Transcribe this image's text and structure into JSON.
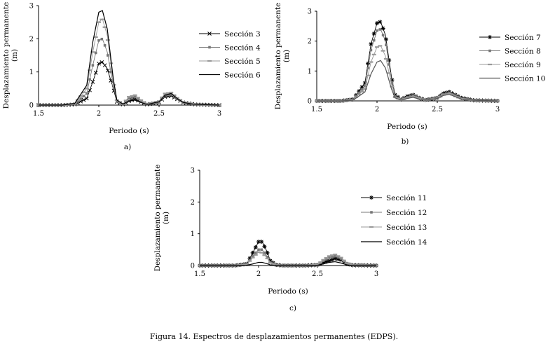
{
  "caption": "Figura 14. Espectros de desplazamientos permanentes (EDPS).",
  "chart_data": [
    {
      "type": "line",
      "panel": "a)",
      "xlabel": "Periodo (s)",
      "ylabel": "Desplazamiento permanente",
      "ylabel_unit": "(m)",
      "xlim": [
        1.5,
        3
      ],
      "ylim": [
        0,
        3
      ],
      "xticks": [
        "1.5",
        "2",
        "2.5",
        "3"
      ],
      "yticks": [
        "0",
        "1",
        "2",
        "3"
      ],
      "series": [
        {
          "name": "Sección 3",
          "marker": "x",
          "color": "#000000",
          "x": [
            1.5,
            1.7,
            1.8,
            1.9,
            1.95,
            2.0,
            2.03,
            2.07,
            2.12,
            2.15,
            2.2,
            2.25,
            2.3,
            2.35,
            2.4,
            2.5,
            2.55,
            2.6,
            2.65,
            2.7,
            2.8,
            3.0
          ],
          "y": [
            0,
            0,
            0.02,
            0.2,
            0.7,
            1.25,
            1.3,
            1.1,
            0.5,
            0.1,
            0.02,
            0.12,
            0.18,
            0.1,
            0.02,
            0.08,
            0.25,
            0.28,
            0.18,
            0.08,
            0.02,
            0
          ]
        },
        {
          "name": "Sección 4",
          "marker": "square",
          "color": "#777777",
          "x": [
            1.5,
            1.7,
            1.8,
            1.9,
            1.95,
            2.0,
            2.03,
            2.07,
            2.12,
            2.15,
            2.2,
            2.25,
            2.3,
            2.35,
            2.4,
            2.5,
            2.55,
            2.6,
            2.65,
            2.7,
            2.8,
            3.0
          ],
          "y": [
            0,
            0,
            0.03,
            0.35,
            1.2,
            1.95,
            2.0,
            1.6,
            0.6,
            0.12,
            0.03,
            0.2,
            0.25,
            0.12,
            0.03,
            0.1,
            0.3,
            0.32,
            0.2,
            0.08,
            0.02,
            0
          ]
        },
        {
          "name": "Sección 5",
          "marker": "dash",
          "color": "#999999",
          "x": [
            1.5,
            1.7,
            1.8,
            1.9,
            1.95,
            2.0,
            2.03,
            2.07,
            2.12,
            2.15,
            2.2,
            2.25,
            2.3,
            2.35,
            2.4,
            2.5,
            2.55,
            2.6,
            2.65,
            2.7,
            2.8,
            3.0
          ],
          "y": [
            0,
            0,
            0.04,
            0.5,
            1.6,
            2.5,
            2.6,
            2.1,
            0.7,
            0.15,
            0.03,
            0.25,
            0.3,
            0.15,
            0.03,
            0.12,
            0.35,
            0.38,
            0.22,
            0.1,
            0.02,
            0
          ]
        },
        {
          "name": "Sección 6",
          "marker": "none",
          "color": "#000000",
          "x": [
            1.5,
            1.7,
            1.8,
            1.9,
            1.95,
            2.0,
            2.03,
            2.07,
            2.12,
            2.15,
            2.2,
            2.25,
            2.3,
            2.35,
            2.4,
            2.5,
            2.55,
            2.6,
            2.65,
            2.7,
            2.8,
            3.0
          ],
          "y": [
            0,
            0,
            0.05,
            0.6,
            1.9,
            2.8,
            2.85,
            2.3,
            0.8,
            0.15,
            0.03,
            0.12,
            0.15,
            0.08,
            0.02,
            0.1,
            0.3,
            0.35,
            0.2,
            0.08,
            0.02,
            0
          ]
        }
      ]
    },
    {
      "type": "line",
      "panel": "b)",
      "xlabel": "Periodo (s)",
      "ylabel": "Desplazamiento permanente",
      "ylabel_unit": "(m)",
      "xlim": [
        1.5,
        3
      ],
      "ylim": [
        0,
        3
      ],
      "xticks": [
        "1.5",
        "2",
        "2.5",
        "3"
      ],
      "yticks": [
        "0",
        "1",
        "2",
        "3"
      ],
      "series": [
        {
          "name": "Sección 7",
          "marker": "asterisk",
          "color": "#000000",
          "x": [
            1.5,
            1.7,
            1.8,
            1.9,
            1.95,
            2.0,
            2.03,
            2.07,
            2.12,
            2.15,
            2.2,
            2.25,
            2.3,
            2.35,
            2.4,
            2.5,
            2.55,
            2.6,
            2.65,
            2.7,
            2.8,
            3.0
          ],
          "y": [
            0,
            0,
            0.05,
            0.6,
            1.9,
            2.6,
            2.65,
            2.2,
            0.8,
            0.2,
            0.05,
            0.15,
            0.2,
            0.1,
            0.03,
            0.1,
            0.25,
            0.3,
            0.2,
            0.1,
            0.02,
            0
          ]
        },
        {
          "name": "Sección 8",
          "marker": "square",
          "color": "#777777",
          "x": [
            1.5,
            1.7,
            1.8,
            1.9,
            1.95,
            2.0,
            2.03,
            2.07,
            2.12,
            2.15,
            2.2,
            2.25,
            2.3,
            2.35,
            2.4,
            2.5,
            2.55,
            2.6,
            2.65,
            2.7,
            2.8,
            3.0
          ],
          "y": [
            0,
            0,
            0.04,
            0.5,
            1.7,
            2.35,
            2.4,
            2.0,
            0.7,
            0.15,
            0.04,
            0.12,
            0.18,
            0.1,
            0.03,
            0.1,
            0.22,
            0.27,
            0.18,
            0.08,
            0.02,
            0
          ]
        },
        {
          "name": "Sección 9",
          "marker": "dash",
          "color": "#999999",
          "x": [
            1.5,
            1.7,
            1.8,
            1.9,
            1.95,
            2.0,
            2.03,
            2.07,
            2.12,
            2.15,
            2.2,
            2.25,
            2.3,
            2.35,
            2.4,
            2.5,
            2.55,
            2.6,
            2.65,
            2.7,
            2.8,
            3.0
          ],
          "y": [
            0,
            0,
            0.03,
            0.4,
            1.3,
            1.8,
            1.85,
            1.5,
            0.55,
            0.12,
            0.03,
            0.1,
            0.15,
            0.08,
            0.02,
            0.08,
            0.2,
            0.25,
            0.15,
            0.07,
            0.02,
            0
          ]
        },
        {
          "name": "Sección 10",
          "marker": "none",
          "color": "#555555",
          "x": [
            1.5,
            1.7,
            1.8,
            1.9,
            1.95,
            2.0,
            2.03,
            2.07,
            2.12,
            2.15,
            2.2,
            2.25,
            2.3,
            2.35,
            2.4,
            2.5,
            2.55,
            2.6,
            2.65,
            2.7,
            2.8,
            3.0
          ],
          "y": [
            0,
            0,
            0.02,
            0.3,
            0.9,
            1.3,
            1.35,
            1.1,
            0.4,
            0.1,
            0.02,
            0.08,
            0.12,
            0.06,
            0.02,
            0.08,
            0.18,
            0.22,
            0.14,
            0.06,
            0.02,
            0
          ]
        }
      ]
    },
    {
      "type": "line",
      "panel": "c)",
      "xlabel": "Periodo (s)",
      "ylabel": "Desplazamiento permanente",
      "ylabel_unit": "(m)",
      "xlim": [
        1.5,
        3
      ],
      "ylim": [
        0,
        3
      ],
      "xticks": [
        "1.5",
        "2",
        "2.5",
        "3"
      ],
      "yticks": [
        "0",
        "1",
        "2",
        "3"
      ],
      "series": [
        {
          "name": "Sección 11",
          "marker": "asterisk",
          "color": "#000000",
          "x": [
            1.5,
            1.8,
            1.9,
            1.95,
            2.0,
            2.03,
            2.07,
            2.1,
            2.15,
            2.2,
            2.4,
            2.5,
            2.55,
            2.6,
            2.65,
            2.7,
            2.75,
            2.8,
            3.0
          ],
          "y": [
            0,
            0,
            0.05,
            0.4,
            0.75,
            0.75,
            0.45,
            0.15,
            0.02,
            0,
            0,
            0.02,
            0.1,
            0.15,
            0.22,
            0.18,
            0.05,
            0.01,
            0
          ]
        },
        {
          "name": "Sección 12",
          "marker": "square",
          "color": "#777777",
          "x": [
            1.5,
            1.8,
            1.9,
            1.95,
            2.0,
            2.03,
            2.07,
            2.1,
            2.15,
            2.2,
            2.4,
            2.5,
            2.55,
            2.6,
            2.65,
            2.7,
            2.75,
            2.8,
            3.0
          ],
          "y": [
            0,
            0,
            0.04,
            0.3,
            0.5,
            0.5,
            0.3,
            0.1,
            0.02,
            0,
            0,
            0.02,
            0.15,
            0.25,
            0.3,
            0.22,
            0.06,
            0.01,
            0
          ]
        },
        {
          "name": "Sección 13",
          "marker": "dash",
          "color": "#999999",
          "x": [
            1.5,
            1.8,
            1.9,
            1.95,
            2.0,
            2.03,
            2.07,
            2.1,
            2.15,
            2.2,
            2.4,
            2.5,
            2.55,
            2.6,
            2.65,
            2.7,
            2.75,
            2.8,
            3.0
          ],
          "y": [
            0,
            0,
            0.03,
            0.25,
            0.42,
            0.4,
            0.25,
            0.08,
            0.01,
            0,
            0,
            0.03,
            0.18,
            0.3,
            0.35,
            0.25,
            0.07,
            0.01,
            0
          ]
        },
        {
          "name": "Sección 14",
          "marker": "none",
          "color": "#000000",
          "x": [
            1.5,
            1.8,
            1.9,
            1.95,
            2.0,
            2.03,
            2.07,
            2.1,
            2.15,
            2.2,
            2.4,
            2.5,
            2.55,
            2.6,
            2.65,
            2.7,
            2.75,
            2.8,
            3.0
          ],
          "y": [
            0,
            0,
            0.01,
            0.05,
            0.1,
            0.1,
            0.06,
            0.02,
            0,
            0,
            0,
            0.01,
            0.05,
            0.1,
            0.12,
            0.08,
            0.02,
            0,
            0
          ]
        }
      ]
    }
  ]
}
